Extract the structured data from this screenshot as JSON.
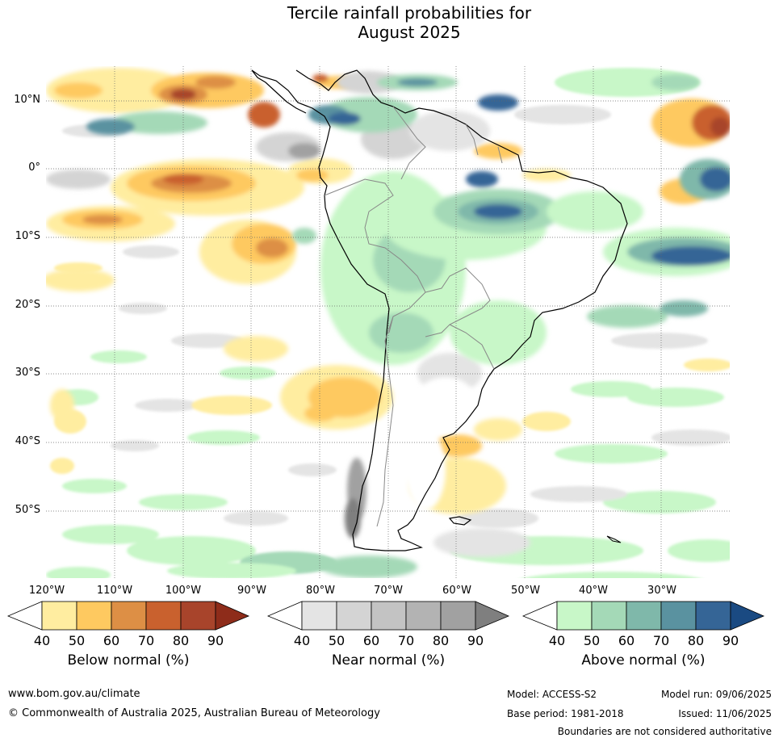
{
  "title_line1": "Tercile rainfall probabilities for",
  "title_line2": "August 2025",
  "lat_labels": [
    "10°N",
    "0°",
    "10°S",
    "20°S",
    "30°S",
    "40°S",
    "50°S"
  ],
  "lon_labels": [
    "120°W",
    "110°W",
    "100°W",
    "90°W",
    "80°W",
    "70°W",
    "60°W",
    "50°W",
    "40°W",
    "30°W"
  ],
  "colorbars": [
    {
      "name": "Below normal (%)",
      "ticks": [
        "40",
        "50",
        "60",
        "70",
        "80",
        "90"
      ],
      "colors": [
        "#ffffff",
        "#ffeda0",
        "#fec960",
        "#dd8f45",
        "#c9612e",
        "#a8442b",
        "#8e2c1a"
      ]
    },
    {
      "name": "Near normal (%)",
      "ticks": [
        "40",
        "50",
        "60",
        "70",
        "80",
        "90"
      ],
      "colors": [
        "#ffffff",
        "#e4e4e4",
        "#d4d4d4",
        "#c3c3c3",
        "#b3b3b3",
        "#a1a1a1",
        "#7f7f7f"
      ]
    },
    {
      "name": "Above normal (%)",
      "ticks": [
        "40",
        "50",
        "60",
        "70",
        "80",
        "90"
      ],
      "colors": [
        "#ffffff",
        "#c8f7c8",
        "#a4d9b7",
        "#7fb8aa",
        "#5a92a0",
        "#356596",
        "#1a4a82"
      ]
    }
  ],
  "footer": {
    "website": "www.bom.gov.au/climate",
    "copyright": "© Commonwealth of Australia 2025, Australian Bureau of Meteorology",
    "model": "Model: ACCESS-S2",
    "base_period": "Base period: 1981-2018",
    "model_run": "Model run: 09/06/2025",
    "issued": "Issued: 11/06/2025",
    "disclaimer": "Boundaries are not considered authoritative"
  }
}
